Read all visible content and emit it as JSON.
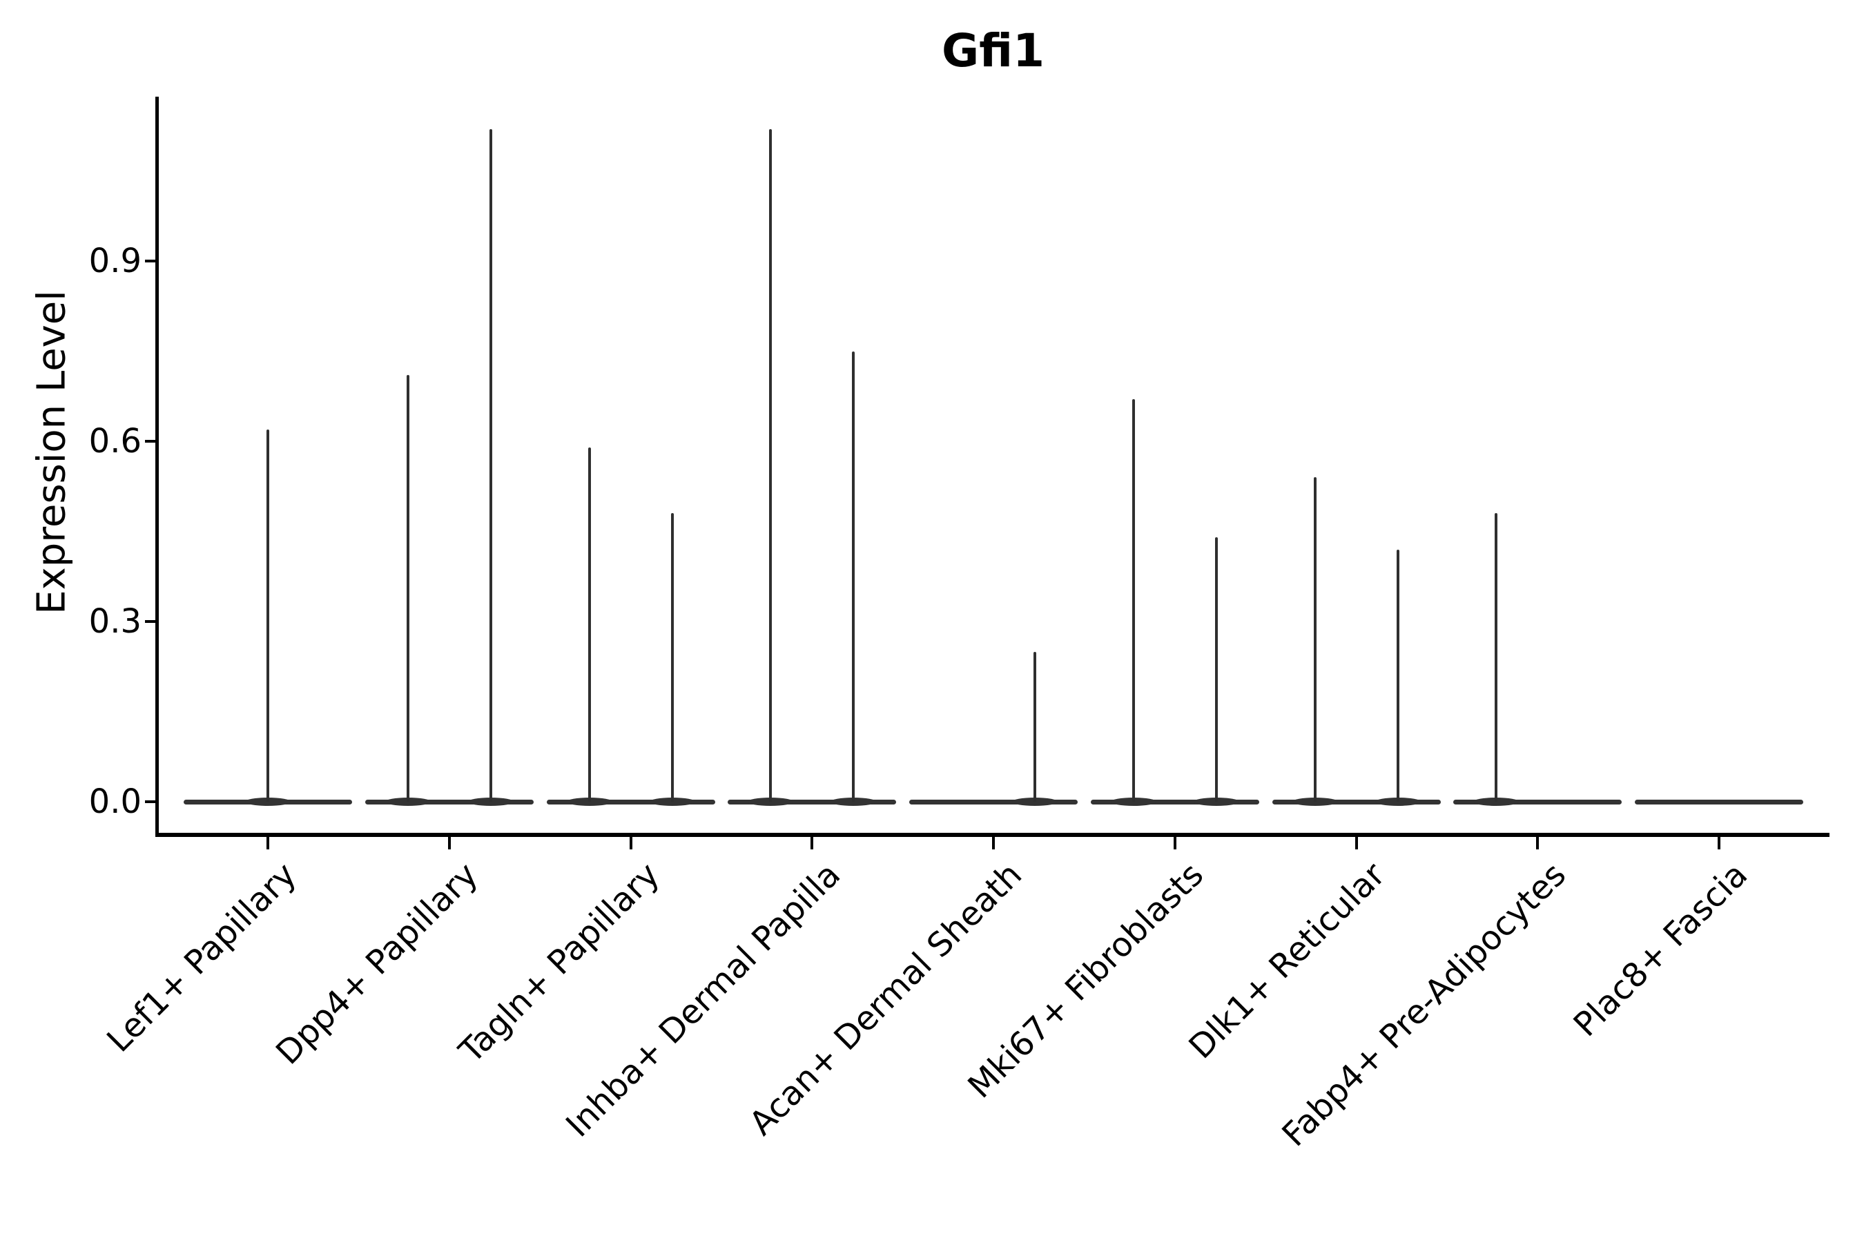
{
  "title": "Gfi1",
  "axes": {
    "ylabel": "Expression Level",
    "y_ticks": [
      {
        "label": "0.0",
        "value": 0.0
      },
      {
        "label": "0.3",
        "value": 0.3
      },
      {
        "label": "0.6",
        "value": 0.6
      },
      {
        "label": "0.9",
        "value": 0.9
      }
    ]
  },
  "chart_data": {
    "type": "violin",
    "title": "Gfi1",
    "xlabel": "",
    "ylabel": "Expression Level",
    "ylim": [
      -0.05,
      1.17
    ],
    "y_tick_values": [
      0.0,
      0.3,
      0.6,
      0.9
    ],
    "grid": false,
    "legend": "none",
    "style_note": "flat violins at zero expression with thin spikes up to max value; two sub-violins (left/right) per category where present",
    "categories": [
      "Lef1+ Papillary",
      "Dpp4+ Papillary",
      "Tagln+ Papillary",
      "Inhba+ Dermal Papilla",
      "Acan+ Dermal Sheath",
      "Mki67+ Fibroblasts",
      "Dlk1+ Reticular",
      "Fabp4+ Pre-Adipocytes",
      "Plac8+ Fascia"
    ],
    "series": [
      {
        "category": "Lef1+ Papillary",
        "violins": [
          {
            "side": "center",
            "max": 0.62
          }
        ]
      },
      {
        "category": "Dpp4+ Papillary",
        "violins": [
          {
            "side": "left",
            "max": 0.71
          },
          {
            "side": "right",
            "max": 1.12
          }
        ]
      },
      {
        "category": "Tagln+ Papillary",
        "violins": [
          {
            "side": "left",
            "max": 0.59
          },
          {
            "side": "right",
            "max": 0.48
          }
        ]
      },
      {
        "category": "Inhba+ Dermal Papilla",
        "violins": [
          {
            "side": "left",
            "max": 1.12
          },
          {
            "side": "right",
            "max": 0.75
          }
        ]
      },
      {
        "category": "Acan+ Dermal Sheath",
        "violins": [
          {
            "side": "left",
            "max": 0.0
          },
          {
            "side": "right",
            "max": 0.25
          }
        ]
      },
      {
        "category": "Mki67+ Fibroblasts",
        "violins": [
          {
            "side": "left",
            "max": 0.67
          },
          {
            "side": "right",
            "max": 0.44
          }
        ]
      },
      {
        "category": "Dlk1+ Reticular",
        "violins": [
          {
            "side": "left",
            "max": 0.54
          },
          {
            "side": "right",
            "max": 0.42
          }
        ]
      },
      {
        "category": "Fabp4+ Pre-Adipocytes",
        "violins": [
          {
            "side": "left",
            "max": 0.48
          },
          {
            "side": "right",
            "max": 0.0
          }
        ]
      },
      {
        "category": "Plac8+ Fascia",
        "violins": [
          {
            "side": "center",
            "max": 0.0
          }
        ]
      }
    ],
    "colors": {
      "violin": "#333333",
      "spike": "#2f2f2f",
      "axis": "#000000",
      "text": "#000000",
      "background": "#ffffff"
    }
  }
}
